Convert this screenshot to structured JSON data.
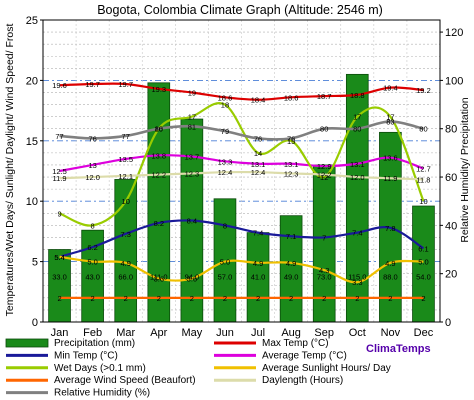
{
  "chart_data": {
    "type": "bar",
    "title": "Bogota, Colombia Climate Graph (Altitude: 2546 m)",
    "ylabel": "Temperatures/Wet Days/ Sunlight/ Daylight/ Wind Speed/ Frost",
    "y2label": "Relative Humidity/ Precipitation",
    "ylim": [
      0,
      25
    ],
    "y2lim": [
      0,
      125
    ],
    "yticks": [
      "0",
      "5",
      "10",
      "15",
      "20",
      "25"
    ],
    "y2ticks": [
      "0",
      "20",
      "40",
      "60",
      "80",
      "100",
      "120"
    ],
    "grid": true,
    "categories": [
      "Jan",
      "Feb",
      "Mar",
      "Apr",
      "May",
      "Jun",
      "Jul",
      "Aug",
      "Sep",
      "Oct",
      "Nov",
      "Dec"
    ],
    "series": [
      {
        "name": "Precipitation (mm)",
        "axis": "right",
        "color": "#1a8a1a",
        "kind": "bar",
        "values": [
          33.0,
          43.0,
          66.0,
          111.0,
          94.0,
          57.0,
          41.0,
          49.0,
          73.0,
          115.0,
          88.0,
          54.0
        ],
        "labels": [
          "33.0",
          "43.0",
          "66.0",
          "111.0",
          "94.0",
          "57.0",
          "41.0",
          "49.0",
          "73.0",
          "115.0",
          "88.0",
          "54.0"
        ],
        "bar_tops": [
          6,
          7.6,
          11.8,
          19.8,
          16.8,
          10.2,
          7.4,
          8.8,
          13,
          20.5,
          15.7,
          9.6
        ]
      },
      {
        "name": "Max Temp (°C)",
        "axis": "left",
        "color": "#dd0000",
        "kind": "line",
        "values": [
          19.6,
          19.7,
          19.7,
          19.3,
          19.0,
          18.6,
          18.4,
          18.6,
          18.7,
          18.8,
          19.4,
          19.2
        ],
        "labels": [
          "19.6",
          "19.7",
          "19.7",
          "19.3",
          "19",
          "18.6",
          "18.4",
          "18.6",
          "18.7",
          "18.8",
          "19.4",
          "19.2"
        ]
      },
      {
        "name": "Min Temp (°C)",
        "axis": "left",
        "color": "#1a1a99",
        "kind": "line",
        "values": [
          5.4,
          6.2,
          7.3,
          8.2,
          8.4,
          8.0,
          7.4,
          7.1,
          7.0,
          7.4,
          7.8,
          6.1
        ],
        "labels": [
          "5.4",
          "6.2",
          "7.3",
          "8.2",
          "8.4",
          "8",
          "7.4",
          "7.1",
          "7",
          "7.4",
          "7.8",
          "6.1"
        ]
      },
      {
        "name": "Average Temp (°C)",
        "axis": "left",
        "color": "#dd00dd",
        "kind": "line",
        "values": [
          12.5,
          13.0,
          13.5,
          13.8,
          13.7,
          13.3,
          13.1,
          13.1,
          12.9,
          13.1,
          13.6,
          12.7
        ],
        "labels": [
          "12.5",
          "13",
          "13.5",
          "13.8",
          "13.7",
          "13.3",
          "13.1",
          "13.1",
          "12.9",
          "13.1",
          "13.6",
          "12.7"
        ]
      },
      {
        "name": "Wet Days (>0.1 mm)",
        "axis": "left",
        "color": "#99cc00",
        "kind": "line",
        "values": [
          9,
          8,
          10,
          16,
          17,
          18,
          14,
          15,
          12,
          17,
          17,
          10
        ],
        "labels": [
          "9",
          "8",
          "10",
          "16",
          "17",
          "18",
          "14",
          "15",
          "12",
          "17",
          "17",
          "10"
        ]
      },
      {
        "name": "Average Sunlight Hours/ Day",
        "axis": "left",
        "color": "#f0c000",
        "kind": "line",
        "values": [
          5.4,
          5.0,
          4.9,
          3.6,
          3.6,
          5.0,
          4.9,
          4.9,
          4.3,
          3.3,
          4.9,
          5.0
        ],
        "labels": [
          "5.4",
          "5.0",
          "4.9",
          "3.6",
          "3.6",
          "5.0",
          "4.9",
          "4.9",
          "4.3",
          "3.3",
          "4.9",
          "5.0"
        ]
      },
      {
        "name": "Average Wind Speed (Beaufort)",
        "axis": "left",
        "color": "#ff6600",
        "kind": "line",
        "values": [
          2,
          2,
          2,
          2,
          2,
          2,
          2,
          2,
          2,
          2,
          2,
          2
        ],
        "labels": [
          "2",
          "2",
          "2",
          "2",
          "2",
          "2",
          "2",
          "2",
          "2",
          "2",
          "2",
          "2"
        ]
      },
      {
        "name": "Daylength (Hours)",
        "axis": "left",
        "color": "#dcdcaa",
        "kind": "line",
        "values": [
          11.9,
          12.0,
          12.1,
          12.2,
          12.3,
          12.4,
          12.4,
          12.3,
          12.2,
          12.0,
          11.9,
          11.8
        ],
        "labels": [
          "11.9",
          "12.0",
          "12.1",
          "12.2",
          "12.3",
          "12.4",
          "12.4",
          "12.3",
          "12.2",
          "12.0",
          "11.9",
          "11.8"
        ]
      },
      {
        "name": "Relative Humidity (%)",
        "axis": "right",
        "color": "#808080",
        "kind": "line",
        "values": [
          77,
          76,
          77,
          80,
          81,
          79,
          76,
          76,
          80,
          80,
          83,
          80
        ],
        "labels": [
          "77",
          "76",
          "77",
          "80",
          "81",
          "79",
          "76",
          "76",
          "80",
          "80",
          "83",
          "80"
        ]
      }
    ],
    "legend": {
      "placement": "bottom",
      "columns": 2
    },
    "watermark": "ClimaTemps"
  }
}
